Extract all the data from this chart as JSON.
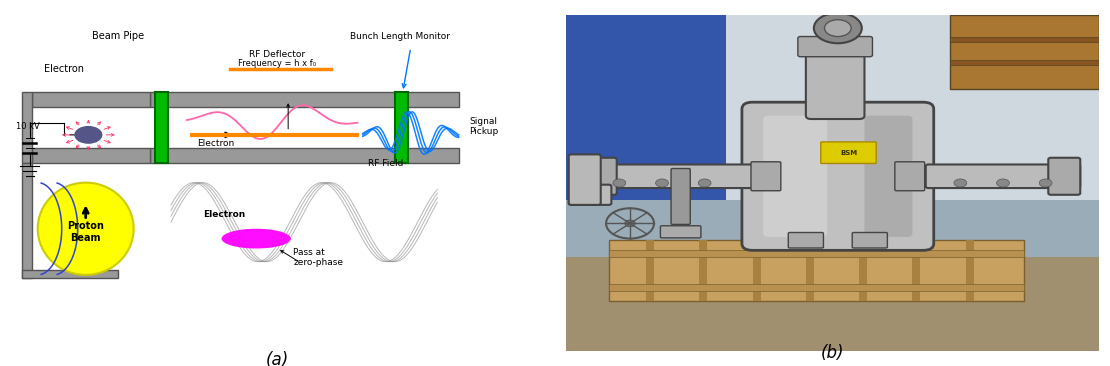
{
  "figsize": [
    11.1,
    3.66
  ],
  "dpi": 100,
  "caption_a": "(a)",
  "caption_b": "(b)",
  "caption_fontsize": 12,
  "bg_color": "#ffffff",
  "diagram": {
    "beam_pipe_color": "#999999",
    "beam_pipe_edge": "#555555",
    "green_bar_color": "#00bb00",
    "green_bar_edge": "#006600",
    "beam_pipe_label": "Beam Pipe",
    "electron_label_top": "Electron",
    "voltage_label": "10 kV",
    "rf_deflector_line1": "RF Deflector",
    "rf_deflector_line2": "Frequency = h x f₀",
    "bunch_length_label": "Bunch Length Monitor",
    "signal_pickup_label": "Signal\nPickup",
    "rf_field_label": "RF Field",
    "electron_label_bottom": "Electron",
    "pass_label": "Pass at\nzero-phase",
    "proton_beam_label": "Proton\nBeam",
    "electron_color": "#555588",
    "proton_beam_color": "#ffff00",
    "proton_beam_edge": "#cccc00",
    "magenta_ellipse_color": "#ff00ff",
    "radiation_arrow_color": "#ff3366",
    "orange_beam_color": "#ff8800",
    "pink_wave_color": "#ff66aa",
    "blue_wave_color": "#0077ff",
    "rf_wave_color": "#888888",
    "blue_curve_color": "#3344cc"
  },
  "photo": {
    "bg_color": "#b0b8c0",
    "floor_color": "#8a7a60",
    "wall_color": "#c8d0d8",
    "wall_color2": "#2244aa",
    "shelf_color": "#996633",
    "metal_color": "#c8c8c8",
    "metal_dark": "#888888",
    "metal_edge": "#555555",
    "wood_color": "#a08050",
    "yellow_tag_color": "#ddcc00"
  }
}
